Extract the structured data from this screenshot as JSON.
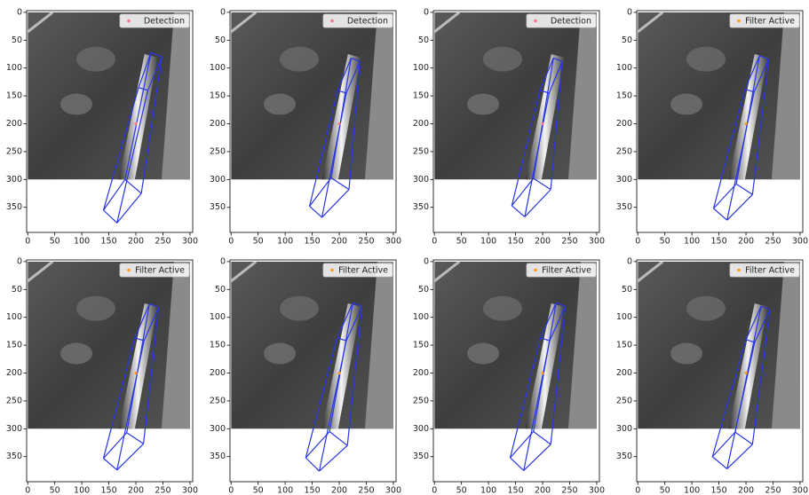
{
  "chart_data": [
    {
      "type": "image",
      "extent": [
        0,
        300,
        300,
        0
      ],
      "xlim": [
        -2,
        305
      ],
      "ylim": [
        395,
        -3
      ],
      "xticks": [
        0,
        50,
        100,
        150,
        200,
        250,
        300
      ],
      "yticks": [
        0,
        50,
        100,
        150,
        200,
        250,
        300,
        350
      ],
      "legend": "upper right",
      "series": [
        {
          "name": "Detection",
          "color": "#f7768e",
          "x": [
            200
          ],
          "y": [
            200
          ]
        }
      ],
      "box": {
        "color": "#2936e0",
        "x": [
          205,
          222,
          248,
          228,
          140,
          165,
          210,
          180
        ],
        "y": [
          135,
          140,
          80,
          72,
          355,
          378,
          325,
          300
        ]
      }
    },
    {
      "type": "image",
      "extent": [
        0,
        300,
        300,
        0
      ],
      "xlim": [
        -2,
        305
      ],
      "ylim": [
        395,
        -3
      ],
      "xticks": [
        0,
        50,
        100,
        150,
        200,
        250,
        300
      ],
      "yticks": [
        0,
        50,
        100,
        150,
        200,
        250,
        300,
        350
      ],
      "legend": "upper right",
      "series": [
        {
          "name": "Detection",
          "color": "#f7768e",
          "x": [
            200
          ],
          "y": [
            200
          ]
        }
      ],
      "box": {
        "color": "#2936e0",
        "x": [
          197,
          213,
          238,
          222,
          145,
          168,
          218,
          185
        ],
        "y": [
          140,
          145,
          88,
          82,
          348,
          368,
          318,
          297
        ]
      }
    },
    {
      "type": "image",
      "extent": [
        0,
        300,
        300,
        0
      ],
      "xlim": [
        -2,
        305
      ],
      "ylim": [
        395,
        -3
      ],
      "xticks": [
        0,
        50,
        100,
        150,
        200,
        250,
        300
      ],
      "yticks": [
        0,
        50,
        100,
        150,
        200,
        250,
        300,
        350
      ],
      "legend": "upper right",
      "series": [
        {
          "name": "Detection",
          "color": "#f7768e",
          "x": [
            200
          ],
          "y": [
            200
          ]
        }
      ],
      "box": {
        "color": "#2936e0",
        "x": [
          195,
          212,
          236,
          220,
          143,
          167,
          215,
          183
        ],
        "y": [
          140,
          145,
          88,
          82,
          347,
          367,
          318,
          298
        ]
      }
    },
    {
      "type": "image",
      "extent": [
        0,
        300,
        300,
        0
      ],
      "xlim": [
        -2,
        305
      ],
      "ylim": [
        395,
        -3
      ],
      "xticks": [
        0,
        50,
        100,
        150,
        200,
        250,
        300
      ],
      "yticks": [
        0,
        50,
        100,
        150,
        200,
        250,
        300,
        350
      ],
      "legend": "upper right",
      "series": [
        {
          "name": "Filter Active",
          "color": "#ff9a1f",
          "x": [
            200
          ],
          "y": [
            200
          ]
        }
      ],
      "box": {
        "color": "#2936e0",
        "x": [
          198,
          215,
          242,
          225,
          140,
          165,
          212,
          182
        ],
        "y": [
          138,
          143,
          84,
          78,
          352,
          373,
          327,
          308
        ]
      }
    },
    {
      "type": "image",
      "extent": [
        0,
        300,
        300,
        0
      ],
      "xlim": [
        -2,
        305
      ],
      "ylim": [
        395,
        -3
      ],
      "xticks": [
        0,
        50,
        100,
        150,
        200,
        250,
        300
      ],
      "yticks": [
        0,
        50,
        100,
        150,
        200,
        250,
        300,
        350
      ],
      "legend": "upper right",
      "series": [
        {
          "name": "Filter Active",
          "color": "#ff9a1f",
          "x": [
            200
          ],
          "y": [
            200
          ]
        }
      ],
      "box": {
        "color": "#2936e0",
        "x": [
          198,
          215,
          242,
          225,
          140,
          165,
          214,
          183
        ],
        "y": [
          137,
          142,
          82,
          76,
          353,
          374,
          327,
          307
        ]
      }
    },
    {
      "type": "image",
      "extent": [
        0,
        300,
        300,
        0
      ],
      "xlim": [
        -2,
        305
      ],
      "ylim": [
        395,
        -3
      ],
      "xticks": [
        0,
        50,
        100,
        150,
        200,
        250,
        300
      ],
      "yticks": [
        0,
        50,
        100,
        150,
        200,
        250,
        300,
        350
      ],
      "legend": "upper right",
      "series": [
        {
          "name": "Filter Active",
          "color": "#ff9a1f",
          "x": [
            200
          ],
          "y": [
            200
          ]
        }
      ],
      "box": {
        "color": "#2936e0",
        "x": [
          196,
          213,
          242,
          225,
          138,
          163,
          215,
          182
        ],
        "y": [
          137,
          142,
          80,
          74,
          352,
          376,
          330,
          305
        ]
      }
    },
    {
      "type": "image",
      "extent": [
        0,
        300,
        300,
        0
      ],
      "xlim": [
        -2,
        305
      ],
      "ylim": [
        395,
        -3
      ],
      "xticks": [
        0,
        50,
        100,
        150,
        200,
        250,
        300
      ],
      "yticks": [
        0,
        50,
        100,
        150,
        200,
        250,
        300,
        350
      ],
      "legend": "upper right",
      "series": [
        {
          "name": "Filter Active",
          "color": "#ff9a1f",
          "x": [
            200
          ],
          "y": [
            200
          ]
        }
      ],
      "box": {
        "color": "#2936e0",
        "x": [
          196,
          213,
          242,
          225,
          140,
          165,
          215,
          183
        ],
        "y": [
          137,
          142,
          80,
          74,
          352,
          375,
          328,
          305
        ]
      }
    },
    {
      "type": "image",
      "extent": [
        0,
        300,
        300,
        0
      ],
      "xlim": [
        -2,
        305
      ],
      "ylim": [
        395,
        -3
      ],
      "xticks": [
        0,
        50,
        100,
        150,
        200,
        250,
        300
      ],
      "yticks": [
        0,
        50,
        100,
        150,
        200,
        250,
        300,
        350
      ],
      "legend": "upper right",
      "series": [
        {
          "name": "Filter Active",
          "color": "#ff9a1f",
          "x": [
            200
          ],
          "y": [
            200
          ]
        }
      ],
      "box": {
        "color": "#2936e0",
        "x": [
          200,
          216,
          244,
          228,
          138,
          165,
          212,
          180
        ],
        "y": [
          140,
          145,
          86,
          80,
          350,
          372,
          328,
          306
        ]
      }
    }
  ]
}
